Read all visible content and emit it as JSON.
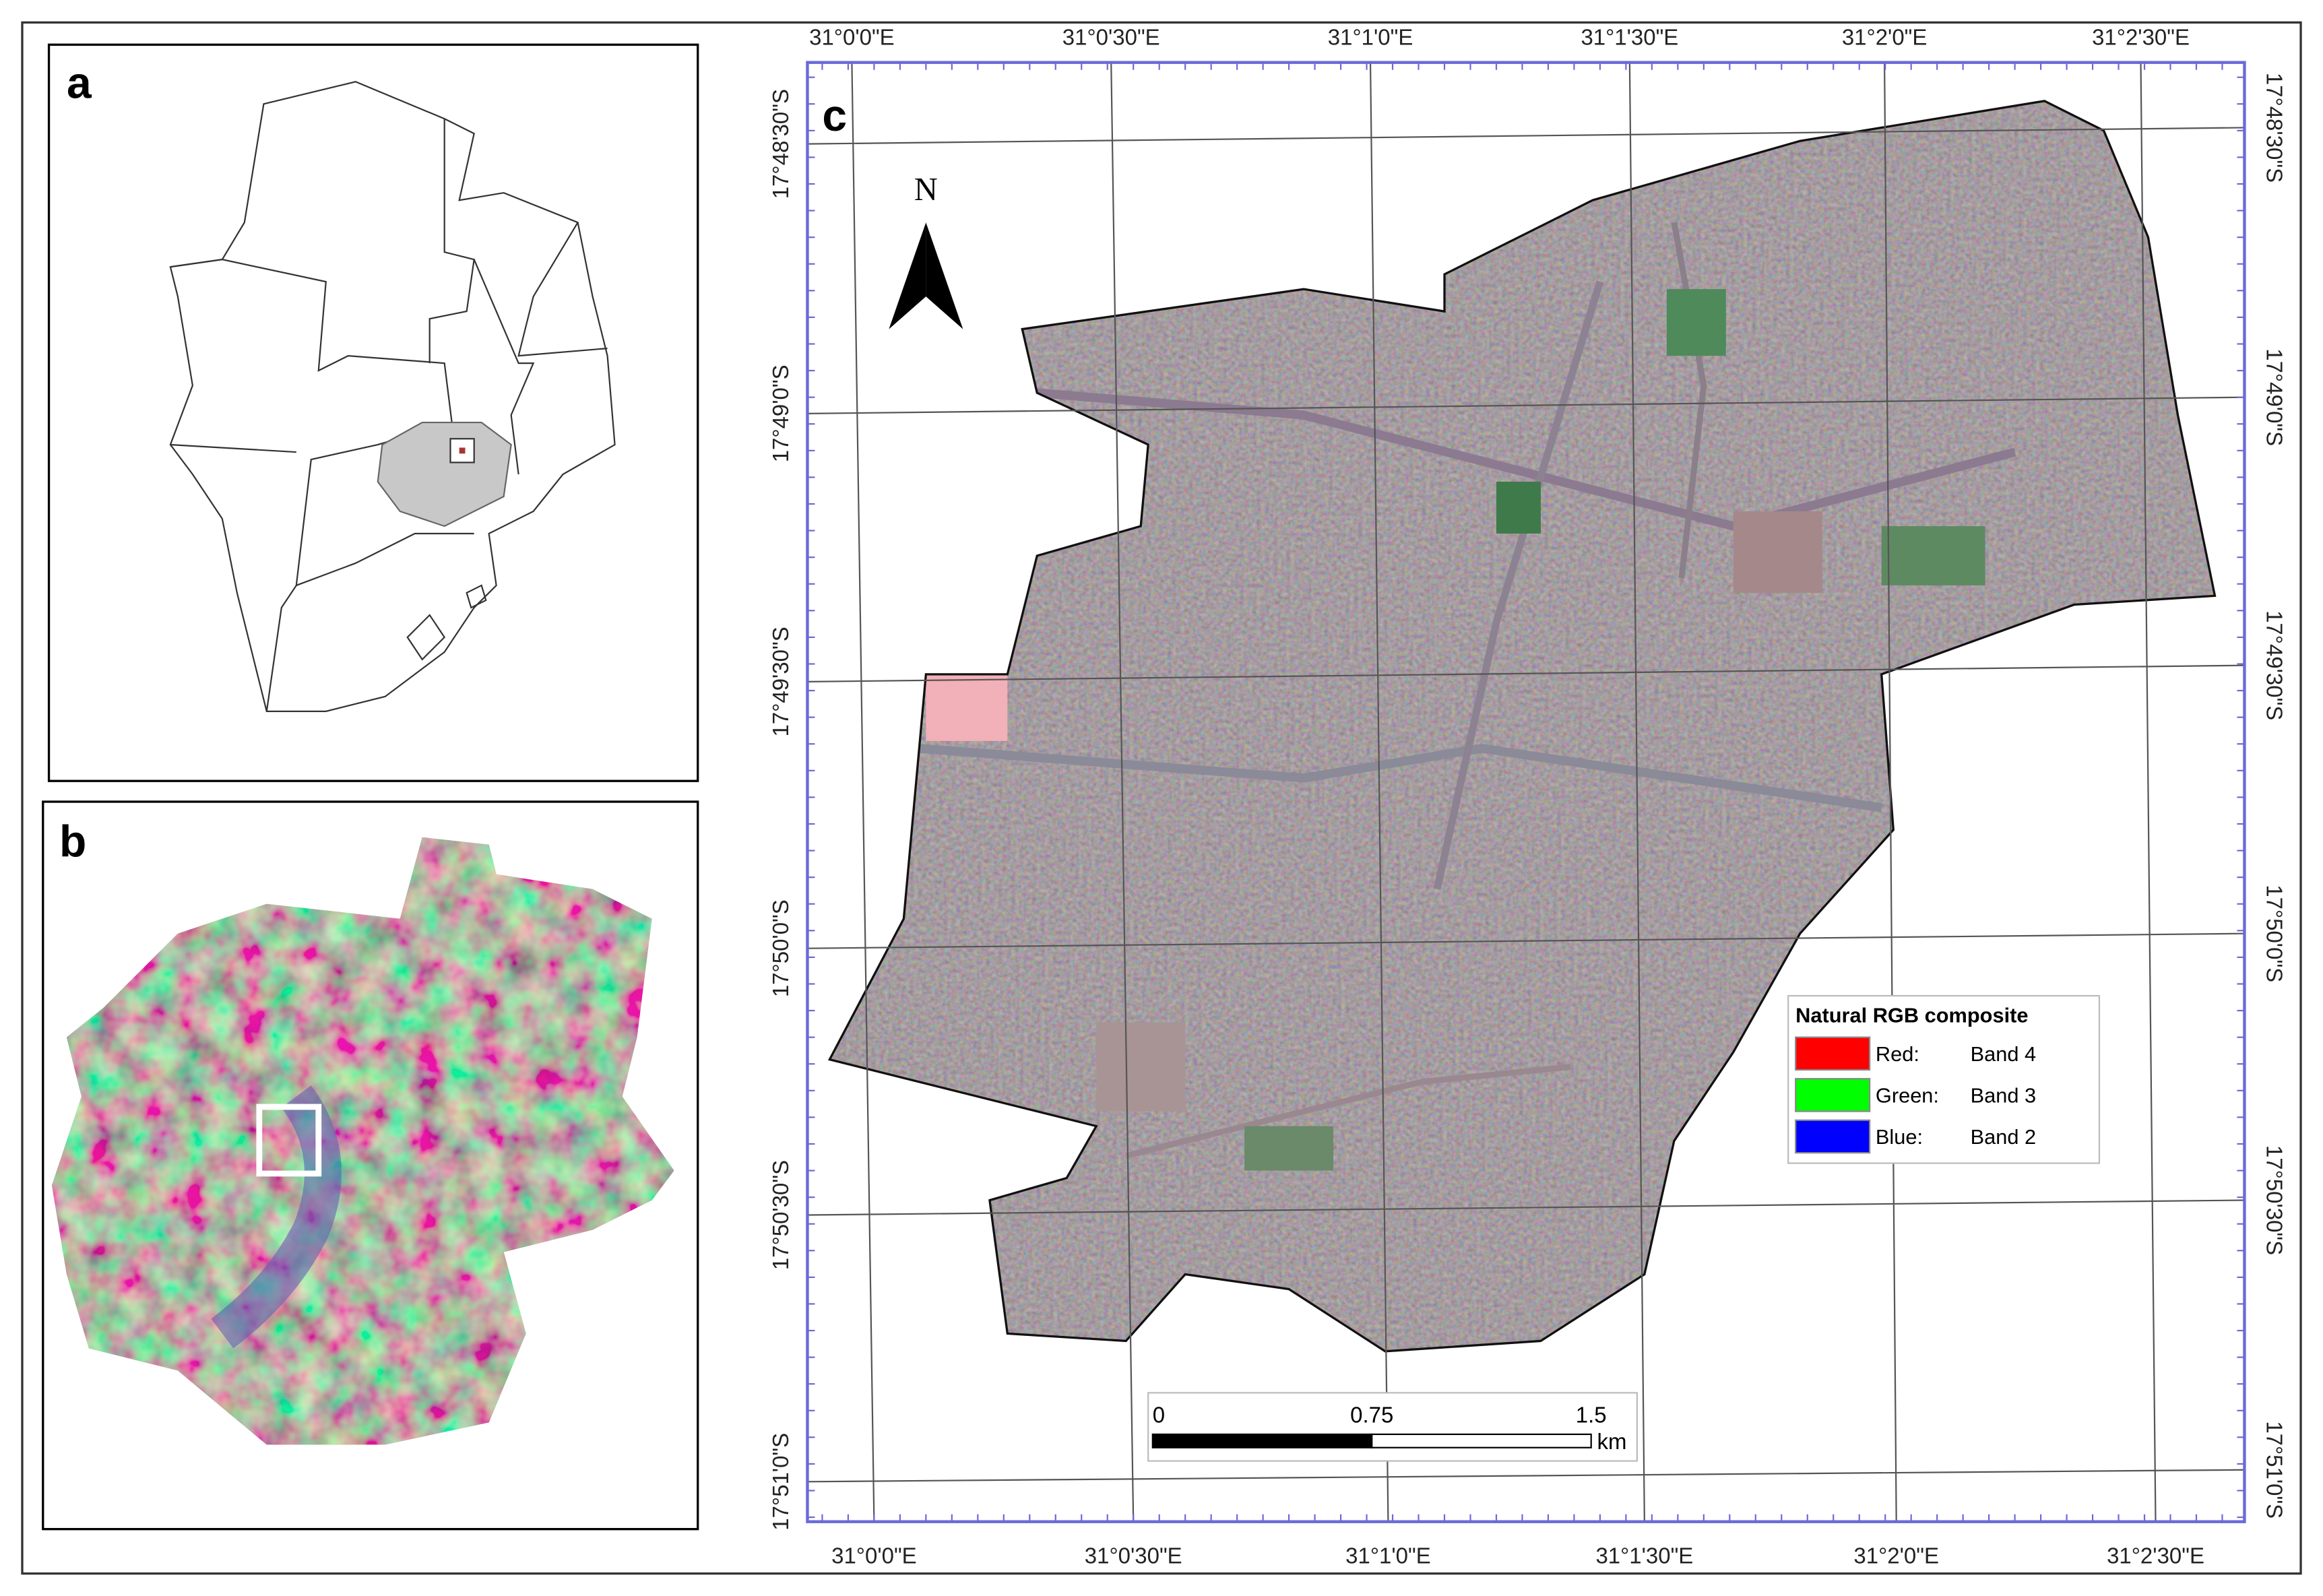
{
  "panels": {
    "a": {
      "label": "a"
    },
    "b": {
      "label": "b"
    },
    "c": {
      "label": "c",
      "north": "N",
      "longitudes": [
        "31°0'0\"E",
        "31°0'30\"E",
        "31°1'0\"E",
        "31°1'30\"E",
        "31°2'0\"E",
        "31°2'30\"E"
      ],
      "latitudes": [
        "17°48'30\"S",
        "17°49'0\"S",
        "17°49'30\"S",
        "17°50'0\"S",
        "17°50'30\"S",
        "17°51'0\"S"
      ],
      "scale_bar": {
        "labels": [
          "0",
          "0.75",
          "1.5"
        ],
        "unit": "km"
      },
      "legend": {
        "title": "Natural RGB composite",
        "entries": [
          {
            "channel": "Red:",
            "band": "Band 4",
            "color": "#ff0000"
          },
          {
            "channel": "Green:",
            "band": "Band 3",
            "color": "#00ff00"
          },
          {
            "channel": "Blue:",
            "band": "Band 2",
            "color": "#0000ff"
          }
        ]
      }
    }
  }
}
